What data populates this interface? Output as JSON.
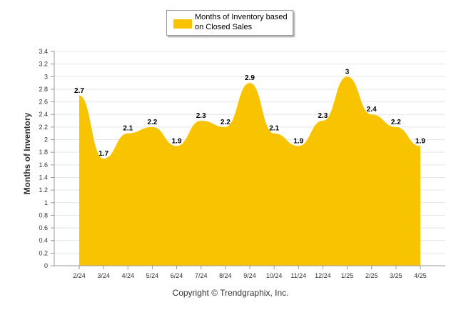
{
  "chart_data": {
    "type": "area",
    "categories": [
      "2/24",
      "3/24",
      "4/24",
      "5/24",
      "6/24",
      "7/24",
      "8/24",
      "9/24",
      "10/24",
      "11/24",
      "12/24",
      "1/25",
      "2/25",
      "3/25",
      "4/25"
    ],
    "series": [
      {
        "name": "Months of Inventory based on Closed Sales",
        "values": [
          2.7,
          1.7,
          2.1,
          2.2,
          1.9,
          2.3,
          2.2,
          2.9,
          2.1,
          1.9,
          2.3,
          3,
          2.4,
          2.2,
          1.9
        ],
        "color": "#f8c300"
      }
    ],
    "data_labels": [
      "2.7",
      "1.7",
      "2.1",
      "2.2",
      "1.9",
      "2.3",
      "2.2",
      "2.9",
      "2.1",
      "1.9",
      "2.3",
      "3",
      "2.4",
      "2.2",
      "1.9"
    ],
    "ylabel": "Months of Inventory",
    "xlabel": "",
    "ylim": [
      0,
      3.4
    ],
    "yticks": [
      "0",
      "0.2",
      "0.4",
      "0.6",
      "0.8",
      "1",
      "1.2",
      "1.4",
      "1.6",
      "1.8",
      "2",
      "2.2",
      "2.4",
      "2.6",
      "2.8",
      "3",
      "3.2",
      "3.4"
    ],
    "grid": true,
    "legend_position": "top-center"
  },
  "legend": {
    "label": "Months of Inventory based on Closed Sales"
  },
  "footer": {
    "copyright": "Copyright © Trendgraphix, Inc."
  }
}
